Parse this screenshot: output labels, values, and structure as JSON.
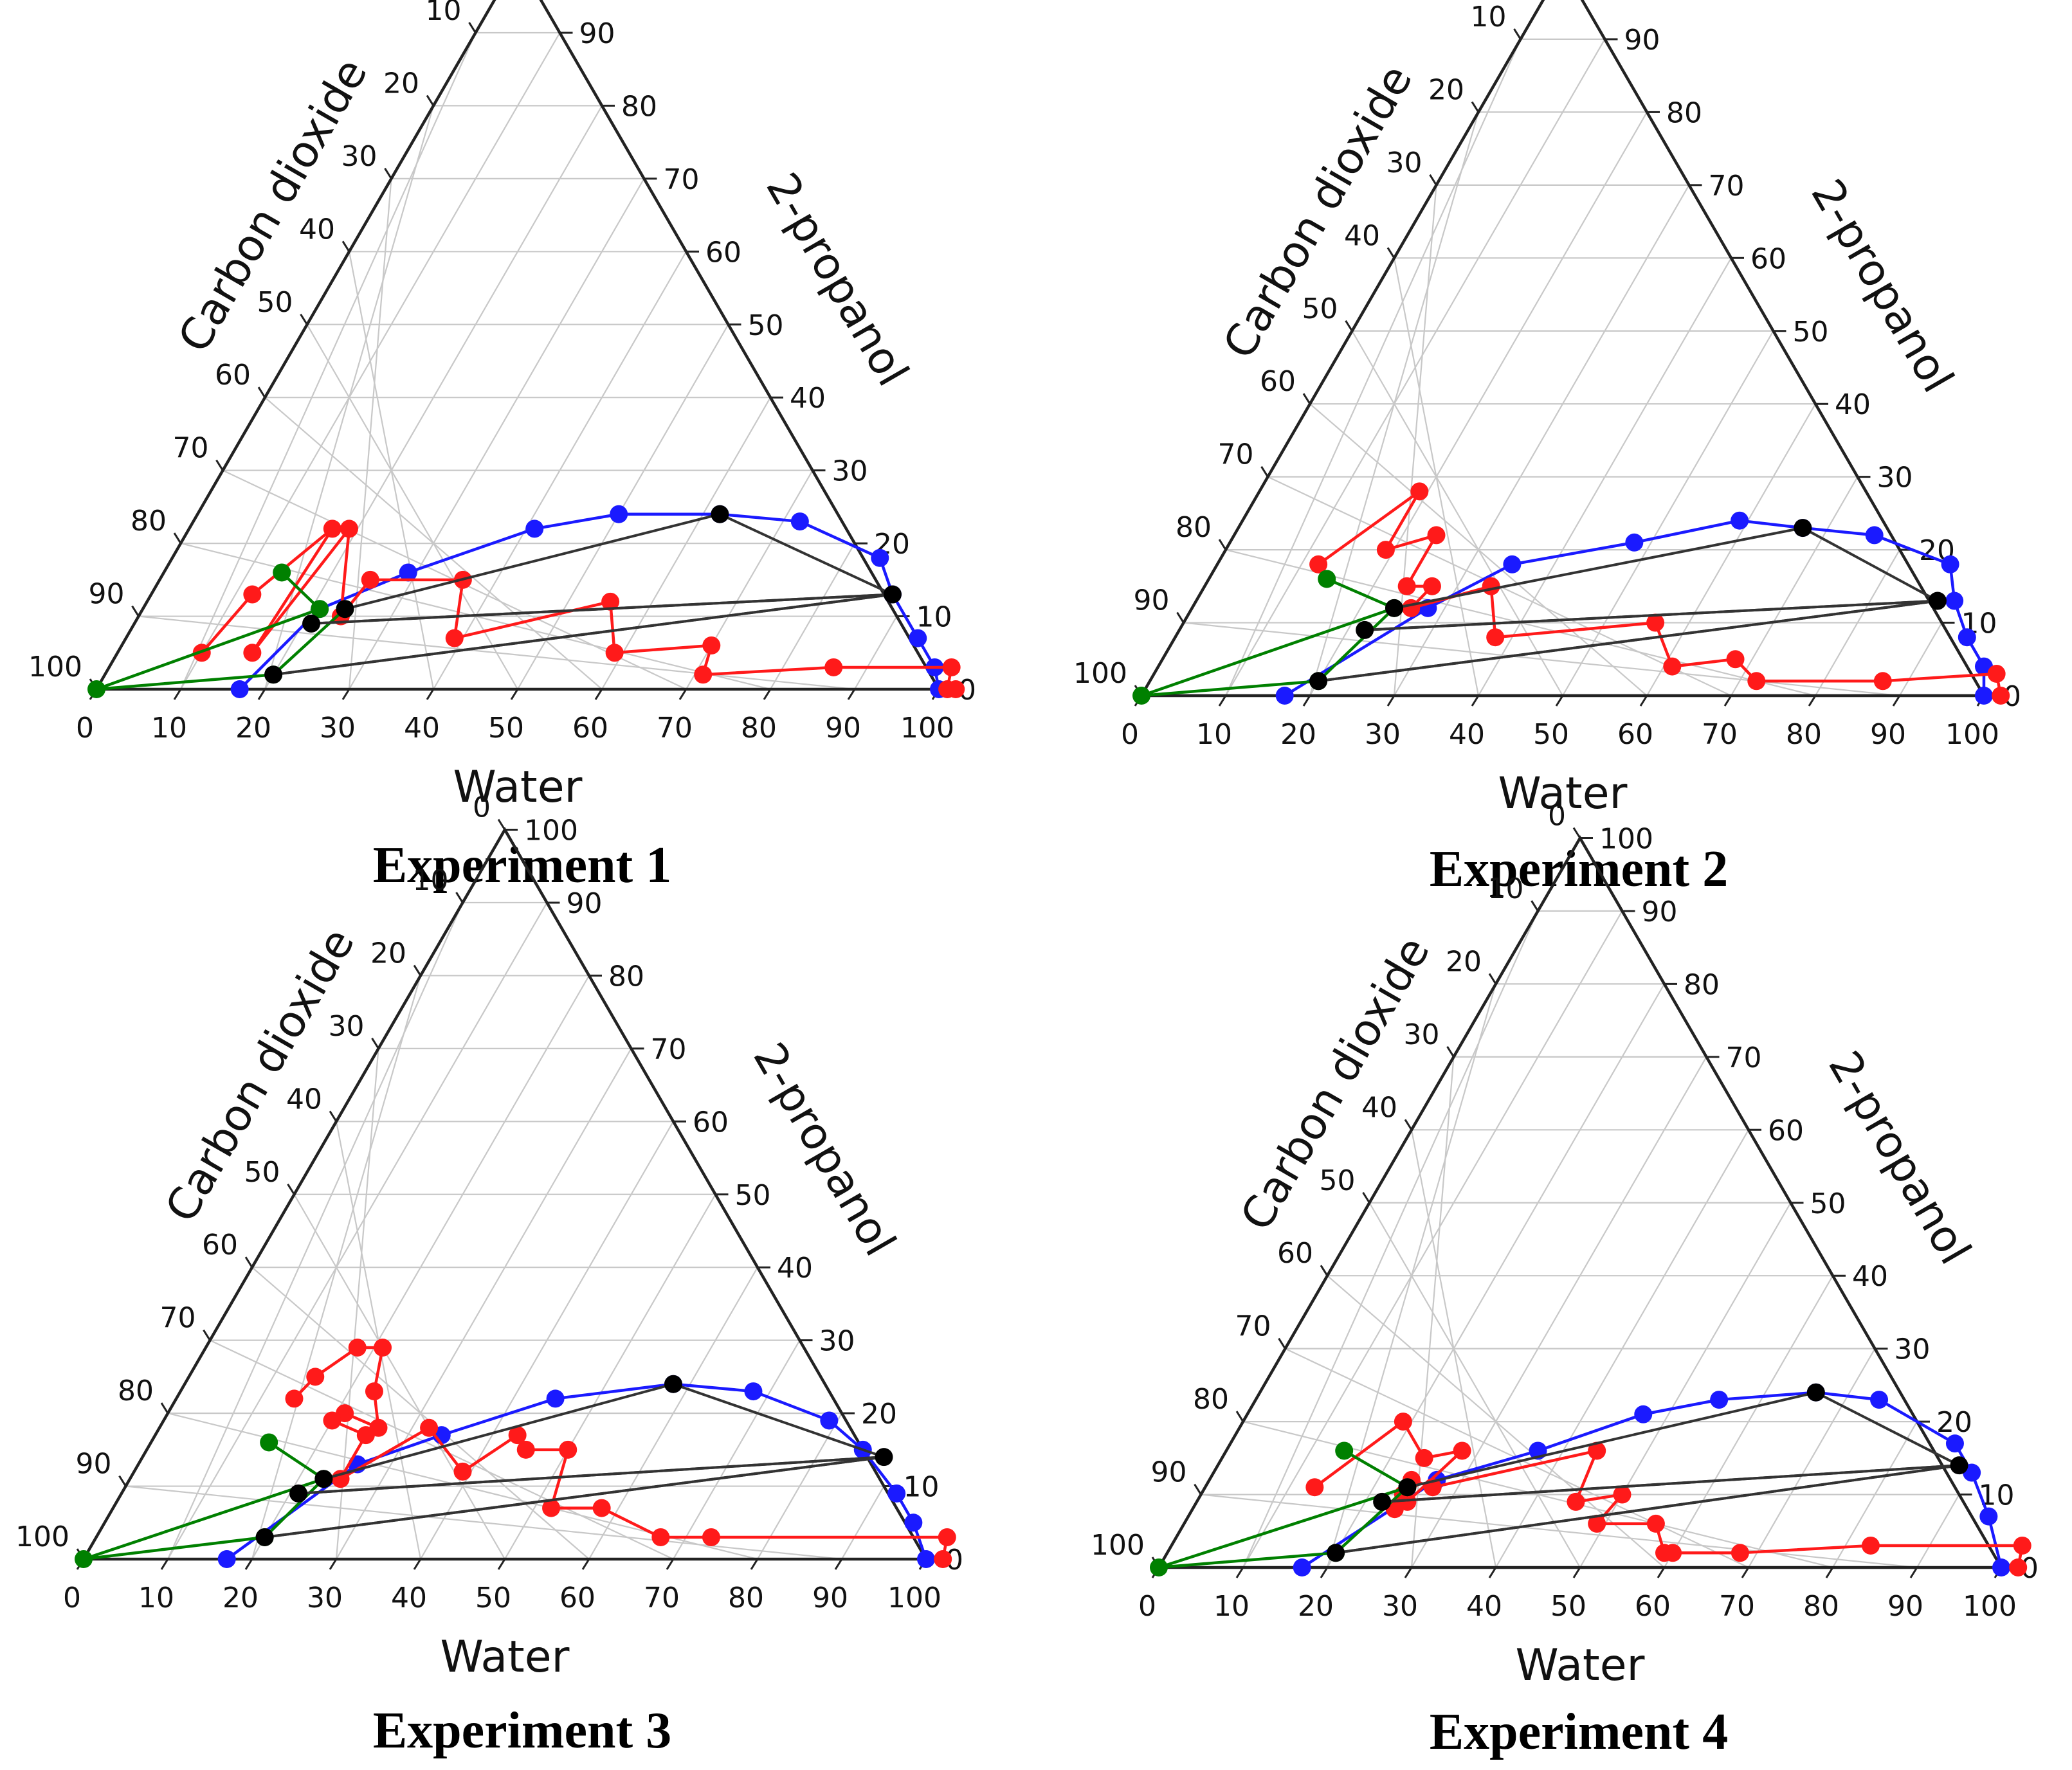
{
  "colors": {
    "grid": "#c8c8c8",
    "frame": "#222222",
    "blue": "#1a1aff",
    "red": "#ff1a1a",
    "green": "#008000",
    "black": "#000000"
  },
  "chart_data": [
    {
      "type": "ternary",
      "title": "Experiment 1",
      "axes": {
        "bottom": "Water",
        "left": "Carbon dioxide",
        "right": "2-propanol"
      },
      "ticks": [
        0,
        10,
        20,
        30,
        40,
        50,
        60,
        70,
        80,
        90,
        100
      ],
      "series": [
        {
          "name": "blue",
          "color": "#1a1aff",
          "points": [
            [
              17,
              0
            ],
            [
              21,
              11
            ],
            [
              29,
              16
            ],
            [
              41,
              22
            ],
            [
              50,
              24
            ],
            [
              62,
              24
            ],
            [
              72,
              23
            ],
            [
              84,
              18
            ],
            [
              88,
              13
            ],
            [
              94,
              7
            ],
            [
              98,
              3
            ],
            [
              100,
              0
            ]
          ]
        },
        {
          "name": "red",
          "color": "#ff1a1a",
          "points": [
            [
              10,
              5
            ],
            [
              12,
              13
            ],
            [
              17,
              22
            ],
            [
              16,
              5
            ],
            [
              19,
              22
            ],
            [
              24,
              10
            ],
            [
              25,
              15
            ],
            [
              36,
              15
            ],
            [
              39,
              7
            ],
            [
              55,
              12
            ],
            [
              59,
              5
            ],
            [
              70,
              6
            ],
            [
              71,
              2
            ],
            [
              86,
              3
            ],
            [
              100,
              3
            ],
            [
              101,
              0
            ],
            [
              102,
              0
            ]
          ]
        },
        {
          "name": "green",
          "color": "#008000",
          "points": [
            [
              14,
              16
            ],
            [
              21,
              11
            ],
            [
              0,
              0
            ],
            [
              20,
              2
            ],
            [
              24,
              11
            ]
          ]
        },
        {
          "name": "black",
          "color": "#000000",
          "points": [
            [
              24,
              11
            ],
            [
              62,
              24
            ],
            [
              88,
              13
            ],
            [
              21,
              9
            ],
            [
              88,
              13
            ],
            [
              20,
              2
            ],
            [
              88,
              13
            ]
          ]
        }
      ]
    },
    {
      "type": "ternary",
      "title": "Experiment 2",
      "axes": {
        "bottom": "Water",
        "left": "Carbon dioxide",
        "right": "2-propanol"
      },
      "ticks": [
        0,
        10,
        20,
        30,
        40,
        50,
        60,
        70,
        80,
        90,
        100
      ],
      "series": [
        {
          "name": "blue",
          "color": "#1a1aff",
          "points": [
            [
              17,
              0
            ],
            [
              28,
              12
            ],
            [
              35,
              18
            ],
            [
              48,
              21
            ],
            [
              59,
              24
            ],
            [
              67,
              23
            ],
            [
              76,
              22
            ],
            [
              87,
              18
            ],
            [
              90,
              13
            ],
            [
              94,
              8
            ],
            [
              98,
              4
            ],
            [
              100,
              0
            ]
          ]
        },
        {
          "name": "red",
          "color": "#ff1a1a",
          "points": [
            [
              12,
              18
            ],
            [
              19,
              28
            ],
            [
              19,
              20
            ],
            [
              24,
              22
            ],
            [
              24,
              15
            ],
            [
              27,
              15
            ],
            [
              26,
              12
            ],
            [
              34,
              15
            ],
            [
              38,
              8
            ],
            [
              56,
              10
            ],
            [
              61,
              4
            ],
            [
              68,
              5
            ],
            [
              72,
              2
            ],
            [
              87,
              2
            ],
            [
              100,
              3
            ],
            [
              102,
              0
            ]
          ]
        },
        {
          "name": "green",
          "color": "#008000",
          "points": [
            [
              14,
              16
            ],
            [
              24,
              12
            ],
            [
              0,
              0
            ],
            [
              20,
              2
            ],
            [
              24,
              12
            ]
          ]
        },
        {
          "name": "black",
          "color": "#000000",
          "points": [
            [
              24,
              12
            ],
            [
              67,
              23
            ],
            [
              88,
              13
            ],
            [
              22,
              9
            ],
            [
              88,
              13
            ],
            [
              20,
              2
            ],
            [
              88,
              13
            ]
          ]
        }
      ]
    },
    {
      "type": "ternary",
      "title": "Experiment 3",
      "axes": {
        "bottom": "Water",
        "left": "Carbon dioxide",
        "right": "2-propanol"
      },
      "ticks": [
        0,
        10,
        20,
        30,
        40,
        50,
        60,
        70,
        80,
        90,
        100
      ],
      "series": [
        {
          "name": "blue",
          "color": "#1a1aff",
          "points": [
            [
              17,
              0
            ],
            [
              26,
              13
            ],
            [
              34,
              17
            ],
            [
              45,
              22
            ],
            [
              58,
              24
            ],
            [
              68,
              23
            ],
            [
              79,
              19
            ],
            [
              85,
              15
            ],
            [
              92,
              9
            ],
            [
              96,
              5
            ],
            [
              100,
              0
            ]
          ]
        },
        {
          "name": "red",
          "color": "#ff1a1a",
          "points": [
            [
              14,
              22
            ],
            [
              15,
              25
            ],
            [
              18,
              29
            ],
            [
              21,
              29
            ],
            [
              23,
              23
            ],
            [
              26,
              18
            ],
            [
              21,
              20
            ],
            [
              20,
              19
            ],
            [
              25,
              17
            ],
            [
              25,
              11
            ],
            [
              32,
              18
            ],
            [
              39,
              12
            ],
            [
              43,
              17
            ],
            [
              45,
              15
            ],
            [
              50,
              15
            ],
            [
              52,
              7
            ],
            [
              58,
              7
            ],
            [
              67,
              3
            ],
            [
              73,
              3
            ],
            [
              101,
              3
            ],
            [
              102,
              0
            ]
          ]
        },
        {
          "name": "green",
          "color": "#008000",
          "points": [
            [
              14,
              16
            ],
            [
              23,
              11
            ],
            [
              0,
              0
            ],
            [
              20,
              3
            ],
            [
              23,
              11
            ]
          ]
        },
        {
          "name": "black",
          "color": "#000000",
          "points": [
            [
              23,
              11
            ],
            [
              58,
              24
            ],
            [
              88,
              14
            ],
            [
              21,
              9
            ],
            [
              88,
              14
            ],
            [
              20,
              3
            ],
            [
              88,
              14
            ]
          ]
        }
      ]
    },
    {
      "type": "ternary",
      "title": "Experiment 4",
      "axes": {
        "bottom": "Water",
        "left": "Carbon dioxide",
        "right": "2-propanol"
      },
      "ticks": [
        0,
        10,
        20,
        30,
        40,
        50,
        60,
        70,
        80,
        90,
        100
      ],
      "series": [
        {
          "name": "blue",
          "color": "#1a1aff",
          "points": [
            [
              17,
              0
            ],
            [
              27,
              12
            ],
            [
              37,
              16
            ],
            [
              47,
              21
            ],
            [
              55,
              23
            ],
            [
              66,
              24
            ],
            [
              74,
              23
            ],
            [
              86,
              17
            ],
            [
              90,
              13
            ],
            [
              95,
              7
            ],
            [
              100,
              0
            ]
          ]
        },
        {
          "name": "red",
          "color": "#ff1a1a",
          "points": [
            [
              13,
              11
            ],
            [
              19,
              20
            ],
            [
              24,
              15
            ],
            [
              28,
              16
            ],
            [
              25,
              9
            ],
            [
              24,
              10
            ],
            [
              24,
              8
            ],
            [
              24,
              12
            ],
            [
              27,
              11
            ],
            [
              44,
              16
            ],
            [
              45,
              9
            ],
            [
              50,
              10
            ],
            [
              49,
              6
            ],
            [
              56,
              6
            ],
            [
              59,
              2
            ],
            [
              60,
              2
            ],
            [
              68,
              2
            ],
            [
              83,
              3
            ],
            [
              101,
              3
            ],
            [
              102,
              0
            ]
          ]
        },
        {
          "name": "green",
          "color": "#008000",
          "points": [
            [
              14,
              16
            ],
            [
              24,
              11
            ],
            [
              0,
              0
            ],
            [
              20,
              2
            ],
            [
              24,
              11
            ]
          ]
        },
        {
          "name": "black",
          "color": "#000000",
          "points": [
            [
              24,
              11
            ],
            [
              66,
              24
            ],
            [
              88,
              14
            ],
            [
              22,
              9
            ],
            [
              88,
              14
            ],
            [
              20,
              2
            ],
            [
              88,
              14
            ]
          ]
        }
      ]
    }
  ]
}
